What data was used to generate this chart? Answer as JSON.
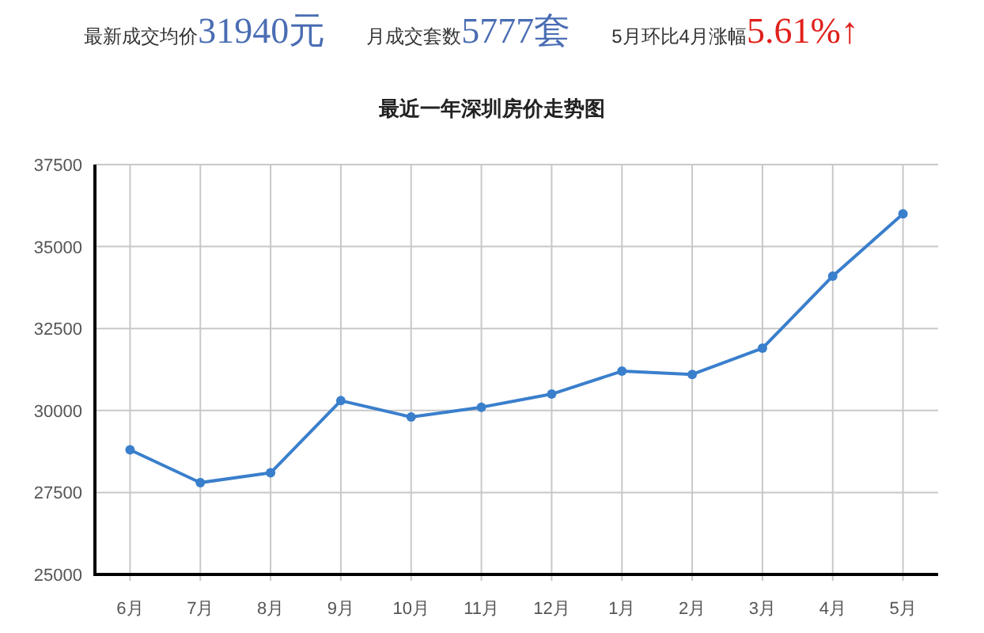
{
  "chart_data": {
    "type": "line",
    "title": "最近一年深圳房价走势图",
    "annotations": [
      "最新成交均价",
      "31940元",
      "月成交套数",
      "5777套",
      "5月环比4月涨幅",
      "5.61%↑"
    ],
    "categories": [
      "6月",
      "7月",
      "8月",
      "9月",
      "10月",
      "11月",
      "12月",
      "1月",
      "2月",
      "3月",
      "4月",
      "5月"
    ],
    "series": [
      {
        "color": "#3a7fcc",
        "values": [
          28800,
          27800,
          28100,
          30300,
          29800,
          30100,
          30500,
          31200,
          31100,
          31900,
          34100,
          36000
        ]
      }
    ],
    "ylim": [
      25000,
      37500
    ],
    "yticks": [
      25000,
      27500,
      30000,
      32500,
      35000,
      37500
    ],
    "grid": true,
    "marker": "circle",
    "line_style": "solid"
  }
}
